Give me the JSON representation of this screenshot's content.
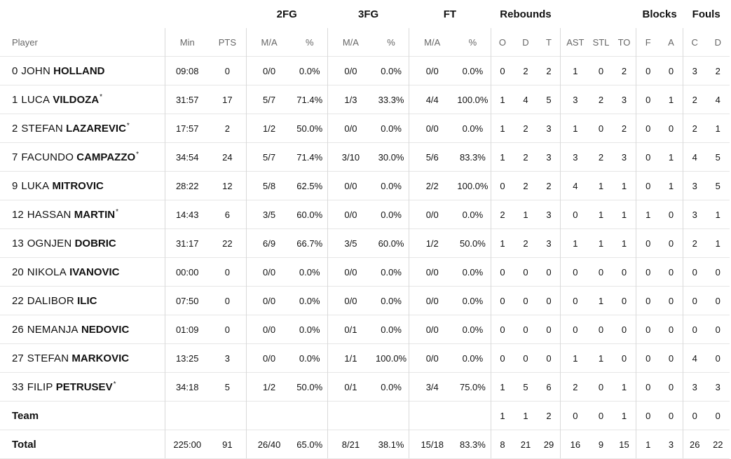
{
  "groups": {
    "fg2": "2FG",
    "fg3": "3FG",
    "ft": "FT",
    "reb": "Rebounds",
    "blk": "Blocks",
    "fouls": "Fouls"
  },
  "sub": {
    "player": "Player",
    "min": "Min",
    "pts": "PTS",
    "fg2_ma": "M/A",
    "fg2_pct": "%",
    "fg3_ma": "M/A",
    "fg3_pct": "%",
    "ft_ma": "M/A",
    "ft_pct": "%",
    "o": "O",
    "d": "D",
    "t": "T",
    "ast": "AST",
    "stl": "STL",
    "to": "TO",
    "f": "F",
    "a": "A",
    "c": "C",
    "fd": "D"
  },
  "rows": [
    {
      "num": "0",
      "first": "JOHN",
      "last": "HOLLAND",
      "star": "",
      "min": "09:08",
      "pts": "0",
      "fg2_ma": "0/0",
      "fg2_pct": "0.0%",
      "fg3_ma": "0/0",
      "fg3_pct": "0.0%",
      "ft_ma": "0/0",
      "ft_pct": "0.0%",
      "o": "0",
      "d": "2",
      "t": "2",
      "ast": "1",
      "stl": "0",
      "to": "2",
      "f": "0",
      "a": "0",
      "c": "3",
      "fd": "2"
    },
    {
      "num": "1",
      "first": "LUCA",
      "last": "VILDOZA",
      "star": "*",
      "min": "31:57",
      "pts": "17",
      "fg2_ma": "5/7",
      "fg2_pct": "71.4%",
      "fg3_ma": "1/3",
      "fg3_pct": "33.3%",
      "ft_ma": "4/4",
      "ft_pct": "100.0%",
      "o": "1",
      "d": "4",
      "t": "5",
      "ast": "3",
      "stl": "2",
      "to": "3",
      "f": "0",
      "a": "1",
      "c": "2",
      "fd": "4"
    },
    {
      "num": "2",
      "first": "STEFAN",
      "last": "LAZAREVIC",
      "star": "*",
      "min": "17:57",
      "pts": "2",
      "fg2_ma": "1/2",
      "fg2_pct": "50.0%",
      "fg3_ma": "0/0",
      "fg3_pct": "0.0%",
      "ft_ma": "0/0",
      "ft_pct": "0.0%",
      "o": "1",
      "d": "2",
      "t": "3",
      "ast": "1",
      "stl": "0",
      "to": "2",
      "f": "0",
      "a": "0",
      "c": "2",
      "fd": "1"
    },
    {
      "num": "7",
      "first": "FACUNDO",
      "last": "CAMPAZZO",
      "star": "*",
      "min": "34:54",
      "pts": "24",
      "fg2_ma": "5/7",
      "fg2_pct": "71.4%",
      "fg3_ma": "3/10",
      "fg3_pct": "30.0%",
      "ft_ma": "5/6",
      "ft_pct": "83.3%",
      "o": "1",
      "d": "2",
      "t": "3",
      "ast": "3",
      "stl": "2",
      "to": "3",
      "f": "0",
      "a": "1",
      "c": "4",
      "fd": "5"
    },
    {
      "num": "9",
      "first": "LUKA",
      "last": "MITROVIC",
      "star": "",
      "min": "28:22",
      "pts": "12",
      "fg2_ma": "5/8",
      "fg2_pct": "62.5%",
      "fg3_ma": "0/0",
      "fg3_pct": "0.0%",
      "ft_ma": "2/2",
      "ft_pct": "100.0%",
      "o": "0",
      "d": "2",
      "t": "2",
      "ast": "4",
      "stl": "1",
      "to": "1",
      "f": "0",
      "a": "1",
      "c": "3",
      "fd": "5"
    },
    {
      "num": "12",
      "first": "HASSAN",
      "last": "MARTIN",
      "star": "*",
      "min": "14:43",
      "pts": "6",
      "fg2_ma": "3/5",
      "fg2_pct": "60.0%",
      "fg3_ma": "0/0",
      "fg3_pct": "0.0%",
      "ft_ma": "0/0",
      "ft_pct": "0.0%",
      "o": "2",
      "d": "1",
      "t": "3",
      "ast": "0",
      "stl": "1",
      "to": "1",
      "f": "1",
      "a": "0",
      "c": "3",
      "fd": "1"
    },
    {
      "num": "13",
      "first": "OGNJEN",
      "last": "DOBRIC",
      "star": "",
      "min": "31:17",
      "pts": "22",
      "fg2_ma": "6/9",
      "fg2_pct": "66.7%",
      "fg3_ma": "3/5",
      "fg3_pct": "60.0%",
      "ft_ma": "1/2",
      "ft_pct": "50.0%",
      "o": "1",
      "d": "2",
      "t": "3",
      "ast": "1",
      "stl": "1",
      "to": "1",
      "f": "0",
      "a": "0",
      "c": "2",
      "fd": "1"
    },
    {
      "num": "20",
      "first": "NIKOLA",
      "last": "IVANOVIC",
      "star": "",
      "min": "00:00",
      "pts": "0",
      "fg2_ma": "0/0",
      "fg2_pct": "0.0%",
      "fg3_ma": "0/0",
      "fg3_pct": "0.0%",
      "ft_ma": "0/0",
      "ft_pct": "0.0%",
      "o": "0",
      "d": "0",
      "t": "0",
      "ast": "0",
      "stl": "0",
      "to": "0",
      "f": "0",
      "a": "0",
      "c": "0",
      "fd": "0"
    },
    {
      "num": "22",
      "first": "DALIBOR",
      "last": "ILIC",
      "star": "",
      "min": "07:50",
      "pts": "0",
      "fg2_ma": "0/0",
      "fg2_pct": "0.0%",
      "fg3_ma": "0/0",
      "fg3_pct": "0.0%",
      "ft_ma": "0/0",
      "ft_pct": "0.0%",
      "o": "0",
      "d": "0",
      "t": "0",
      "ast": "0",
      "stl": "1",
      "to": "0",
      "f": "0",
      "a": "0",
      "c": "0",
      "fd": "0"
    },
    {
      "num": "26",
      "first": "NEMANJA",
      "last": "NEDOVIC",
      "star": "",
      "min": "01:09",
      "pts": "0",
      "fg2_ma": "0/0",
      "fg2_pct": "0.0%",
      "fg3_ma": "0/1",
      "fg3_pct": "0.0%",
      "ft_ma": "0/0",
      "ft_pct": "0.0%",
      "o": "0",
      "d": "0",
      "t": "0",
      "ast": "0",
      "stl": "0",
      "to": "0",
      "f": "0",
      "a": "0",
      "c": "0",
      "fd": "0"
    },
    {
      "num": "27",
      "first": "STEFAN",
      "last": "MARKOVIC",
      "star": "",
      "min": "13:25",
      "pts": "3",
      "fg2_ma": "0/0",
      "fg2_pct": "0.0%",
      "fg3_ma": "1/1",
      "fg3_pct": "100.0%",
      "ft_ma": "0/0",
      "ft_pct": "0.0%",
      "o": "0",
      "d": "0",
      "t": "0",
      "ast": "1",
      "stl": "1",
      "to": "0",
      "f": "0",
      "a": "0",
      "c": "4",
      "fd": "0"
    },
    {
      "num": "33",
      "first": "FILIP",
      "last": "PETRUSEV",
      "star": "*",
      "min": "34:18",
      "pts": "5",
      "fg2_ma": "1/2",
      "fg2_pct": "50.0%",
      "fg3_ma": "0/1",
      "fg3_pct": "0.0%",
      "ft_ma": "3/4",
      "ft_pct": "75.0%",
      "o": "1",
      "d": "5",
      "t": "6",
      "ast": "2",
      "stl": "0",
      "to": "1",
      "f": "0",
      "a": "0",
      "c": "3",
      "fd": "3"
    }
  ],
  "team": {
    "label": "Team",
    "min": "",
    "pts": "",
    "fg2_ma": "",
    "fg2_pct": "",
    "fg3_ma": "",
    "fg3_pct": "",
    "ft_ma": "",
    "ft_pct": "",
    "o": "1",
    "d": "1",
    "t": "2",
    "ast": "0",
    "stl": "0",
    "to": "1",
    "f": "0",
    "a": "0",
    "c": "0",
    "fd": "0"
  },
  "total": {
    "label": "Total",
    "min": "225:00",
    "pts": "91",
    "fg2_ma": "26/40",
    "fg2_pct": "65.0%",
    "fg3_ma": "8/21",
    "fg3_pct": "38.1%",
    "ft_ma": "15/18",
    "ft_pct": "83.3%",
    "o": "8",
    "d": "21",
    "t": "29",
    "ast": "16",
    "stl": "9",
    "to": "15",
    "f": "1",
    "a": "3",
    "c": "26",
    "fd": "22"
  }
}
